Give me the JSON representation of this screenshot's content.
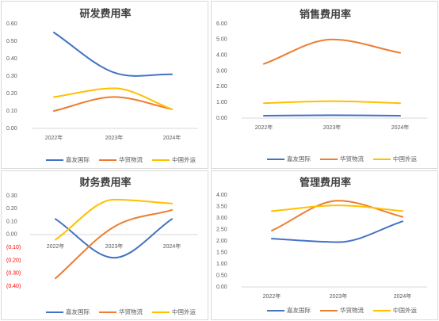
{
  "chart_data": [
    {
      "type": "line",
      "title": "研发费用率",
      "categories": [
        "2022年",
        "2023年",
        "2024年"
      ],
      "ylim": [
        0,
        0.6
      ],
      "yticks": [
        0,
        0.1,
        0.2,
        0.3,
        0.4,
        0.5,
        0.6
      ],
      "ytick_labels": [
        "0.00",
        "0.10",
        "0.20",
        "0.30",
        "0.40",
        "0.50",
        "0.60"
      ],
      "series": [
        {
          "name": "嘉友国际",
          "values": [
            0.55,
            0.32,
            0.31
          ],
          "color": "#4472C4"
        },
        {
          "name": "华贸物流",
          "values": [
            0.1,
            0.18,
            0.11
          ],
          "color": "#ED7D31"
        },
        {
          "name": "中国外运",
          "values": [
            0.18,
            0.23,
            0.11
          ],
          "color": "#FFC000"
        }
      ],
      "legend_position": "bottom"
    },
    {
      "type": "line",
      "title": "销售费用率",
      "categories": [
        "2022年",
        "2023年",
        "2024年"
      ],
      "ylim": [
        0,
        6
      ],
      "yticks": [
        0,
        1,
        2,
        3,
        4,
        5,
        6
      ],
      "ytick_labels": [
        "0.00",
        "1.00",
        "2.00",
        "3.00",
        "4.00",
        "5.00",
        "6.00"
      ],
      "series": [
        {
          "name": "嘉友国际",
          "values": [
            0.15,
            0.18,
            0.15
          ],
          "color": "#4472C4"
        },
        {
          "name": "华贸物流",
          "values": [
            3.45,
            5.0,
            4.15
          ],
          "color": "#ED7D31"
        },
        {
          "name": "中国外运",
          "values": [
            0.95,
            1.08,
            0.95
          ],
          "color": "#FFC000"
        }
      ],
      "legend_position": "bottom"
    },
    {
      "type": "line",
      "title": "财务费用率",
      "categories": [
        "2022年",
        "2023年",
        "2024年"
      ],
      "ylim": [
        -0.4,
        0.3
      ],
      "yticks": [
        0.3,
        0.2,
        0.1,
        0,
        -0.1,
        -0.2,
        -0.3,
        -0.4
      ],
      "ytick_labels": [
        "0.30",
        "0.20",
        "0.10",
        "0.00",
        "(0.10)",
        "(0.20)",
        "(0.30)",
        "(0.40)"
      ],
      "negative_tick_color": "#FF0000",
      "series": [
        {
          "name": "嘉友国际",
          "values": [
            0.12,
            -0.18,
            0.12
          ],
          "color": "#4472C4"
        },
        {
          "name": "华贸物流",
          "values": [
            -0.34,
            0.06,
            0.19
          ],
          "color": "#ED7D31"
        },
        {
          "name": "中国外运",
          "values": [
            -0.04,
            0.27,
            0.24
          ],
          "color": "#FFC000"
        }
      ],
      "legend_position": "bottom"
    },
    {
      "type": "line",
      "title": "管理费用率",
      "categories": [
        "2022年",
        "2023年",
        "2024年"
      ],
      "ylim": [
        0,
        4
      ],
      "yticks": [
        0,
        0.5,
        1,
        1.5,
        2,
        2.5,
        3,
        3.5,
        4
      ],
      "ytick_labels": [
        "0.00",
        "0.50",
        "1.00",
        "1.50",
        "2.00",
        "2.50",
        "3.00",
        "3.50",
        "4.00"
      ],
      "series": [
        {
          "name": "嘉友国际",
          "values": [
            2.1,
            1.95,
            2.85
          ],
          "color": "#4472C4"
        },
        {
          "name": "华贸物流",
          "values": [
            2.45,
            3.75,
            3.05
          ],
          "color": "#ED7D31"
        },
        {
          "name": "中国外运",
          "values": [
            3.3,
            3.55,
            3.3
          ],
          "color": "#FFC000"
        }
      ],
      "legend_position": "bottom"
    }
  ]
}
